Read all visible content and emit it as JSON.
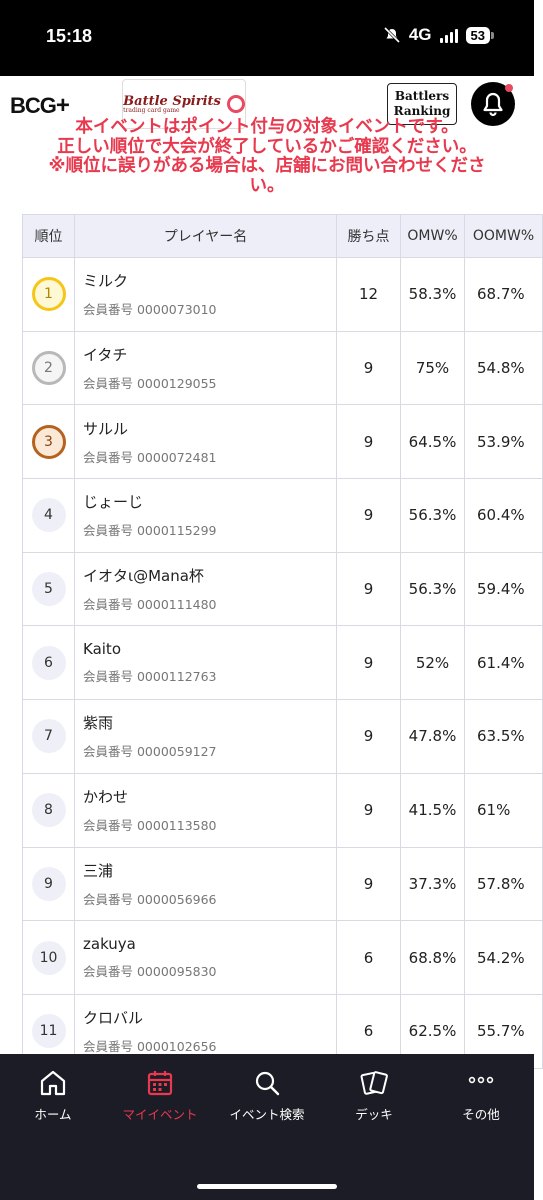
{
  "status_bar": {
    "time": "15:18",
    "network": "4G",
    "battery": "53"
  },
  "header": {
    "logo_bcg": "BCG",
    "logo_bcg_plus": "+",
    "logo_battle_spirits": "Battle Spirits",
    "logo_battle_spirits_sub": "trading card game",
    "logo_battlers_line1": "Battlers",
    "logo_battlers_line2": "Ranking",
    "accent_color": "#e8394e"
  },
  "notice": {
    "line1": "本イベントはポイント付与の対象イベントです。",
    "line2": "正しい順位で大会が終了しているかご確認ください。",
    "line3": "※順位に誤りがある場合は、店舗にお問い合わせくださ",
    "line4": "い。"
  },
  "table": {
    "headers": {
      "rank": "順位",
      "player": "プレイヤー名",
      "points": "勝ち点",
      "omw": "OMW%",
      "oomw": "OOMW%"
    },
    "rows": [
      {
        "rank": "1",
        "medal": "gold",
        "name": "ミルク",
        "member": "会員番号 0000073010",
        "points": "12",
        "omw": "58.3%",
        "oomw": "68.7%"
      },
      {
        "rank": "2",
        "medal": "silver",
        "name": "イタチ",
        "member": "会員番号 0000129055",
        "points": "9",
        "omw": "75%",
        "oomw": "54.8%"
      },
      {
        "rank": "3",
        "medal": "bronze",
        "name": "サルル",
        "member": "会員番号 0000072481",
        "points": "9",
        "omw": "64.5%",
        "oomw": "53.9%"
      },
      {
        "rank": "4",
        "medal": "plain",
        "name": "じょーじ",
        "member": "会員番号 0000115299",
        "points": "9",
        "omw": "56.3%",
        "oomw": "60.4%"
      },
      {
        "rank": "5",
        "medal": "plain",
        "name": "イオタι@Mana杯",
        "member": "会員番号 0000111480",
        "points": "9",
        "omw": "56.3%",
        "oomw": "59.4%"
      },
      {
        "rank": "6",
        "medal": "plain",
        "name": "Kaito",
        "member": "会員番号 0000112763",
        "points": "9",
        "omw": "52%",
        "oomw": "61.4%"
      },
      {
        "rank": "7",
        "medal": "plain",
        "name": "紫雨",
        "member": "会員番号 0000059127",
        "points": "9",
        "omw": "47.8%",
        "oomw": "63.5%"
      },
      {
        "rank": "8",
        "medal": "plain",
        "name": "かわせ",
        "member": "会員番号 0000113580",
        "points": "9",
        "omw": "41.5%",
        "oomw": "61%"
      },
      {
        "rank": "9",
        "medal": "plain",
        "name": "三浦",
        "member": "会員番号 0000056966",
        "points": "9",
        "omw": "37.3%",
        "oomw": "57.8%"
      },
      {
        "rank": "10",
        "medal": "plain",
        "name": "zakuya",
        "member": "会員番号 0000095830",
        "points": "6",
        "omw": "68.8%",
        "oomw": "54.2%"
      },
      {
        "rank": "11",
        "medal": "plain",
        "name": "クロバル",
        "member": "会員番号 0000102656",
        "points": "6",
        "omw": "62.5%",
        "oomw": "55.7%"
      }
    ]
  },
  "bottom_nav": {
    "items": [
      {
        "label": "ホーム",
        "icon": "home-icon",
        "active": false
      },
      {
        "label": "マイイベント",
        "icon": "calendar-icon",
        "active": true
      },
      {
        "label": "イベント検索",
        "icon": "search-icon",
        "active": false
      },
      {
        "label": "デッキ",
        "icon": "cards-icon",
        "active": false
      },
      {
        "label": "その他",
        "icon": "more-icon",
        "active": false
      }
    ]
  }
}
